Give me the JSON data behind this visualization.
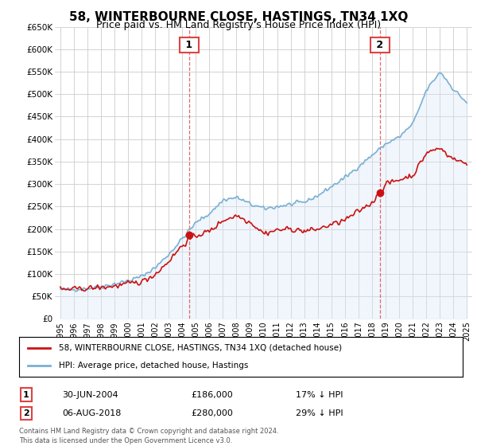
{
  "title": "58, WINTERBOURNE CLOSE, HASTINGS, TN34 1XQ",
  "subtitle": "Price paid vs. HM Land Registry's House Price Index (HPI)",
  "ylim": [
    0,
    650000
  ],
  "yticks": [
    0,
    50000,
    100000,
    150000,
    200000,
    250000,
    300000,
    350000,
    400000,
    450000,
    500000,
    550000,
    600000,
    650000
  ],
  "ytick_labels": [
    "£0",
    "£50K",
    "£100K",
    "£150K",
    "£200K",
    "£250K",
    "£300K",
    "£350K",
    "£400K",
    "£450K",
    "£500K",
    "£550K",
    "£600K",
    "£650K"
  ],
  "hpi_color": "#7ab0d4",
  "hpi_fill_color": "#d6e8f5",
  "price_color": "#cc1111",
  "sale1_date": 2004.5,
  "sale1_price": 186000,
  "sale2_date": 2018.58,
  "sale2_price": 280000,
  "vline_color": "#dd4444",
  "legend_label_red": "58, WINTERBOURNE CLOSE, HASTINGS, TN34 1XQ (detached house)",
  "legend_label_blue": "HPI: Average price, detached house, Hastings",
  "footer1": "Contains HM Land Registry data © Crown copyright and database right 2024.",
  "footer2": "This data is licensed under the Open Government Licence v3.0.",
  "table_row1": [
    "1",
    "30-JUN-2004",
    "£186,000",
    "17% ↓ HPI"
  ],
  "table_row2": [
    "2",
    "06-AUG-2018",
    "£280,000",
    "29% ↓ HPI"
  ],
  "background_color": "#ffffff",
  "grid_color": "#cccccc",
  "title_fontsize": 11,
  "subtitle_fontsize": 9
}
